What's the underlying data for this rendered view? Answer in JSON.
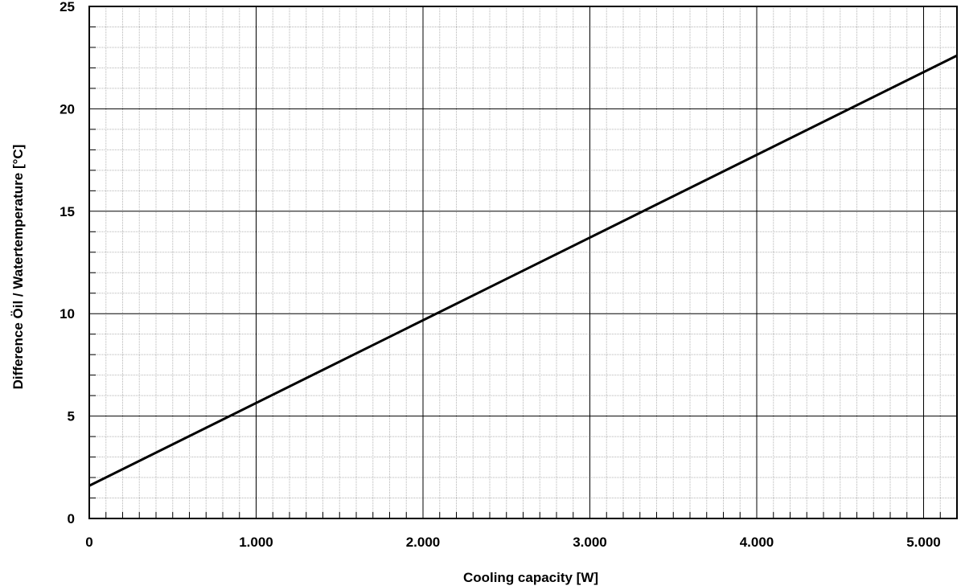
{
  "chart_data": {
    "type": "line",
    "xlabel": "Cooling capacity [W]",
    "ylabel": "Difference    Öil / Watertemperature  [°C]",
    "xlim": [
      0,
      5200
    ],
    "ylim": [
      0,
      25
    ],
    "x_ticks": [
      0,
      1000,
      2000,
      3000,
      4000,
      5000
    ],
    "x_tick_labels": [
      "0",
      "1.000",
      "2.000",
      "3.000",
      "4.000",
      "5.000"
    ],
    "y_ticks": [
      0,
      5,
      10,
      15,
      20,
      25
    ],
    "y_tick_labels": [
      "0",
      "5",
      "10",
      "15",
      "20",
      "25"
    ],
    "grid": true,
    "series": [
      {
        "x": [
          0,
          5200
        ],
        "y": [
          1.6,
          22.6
        ]
      }
    ]
  }
}
